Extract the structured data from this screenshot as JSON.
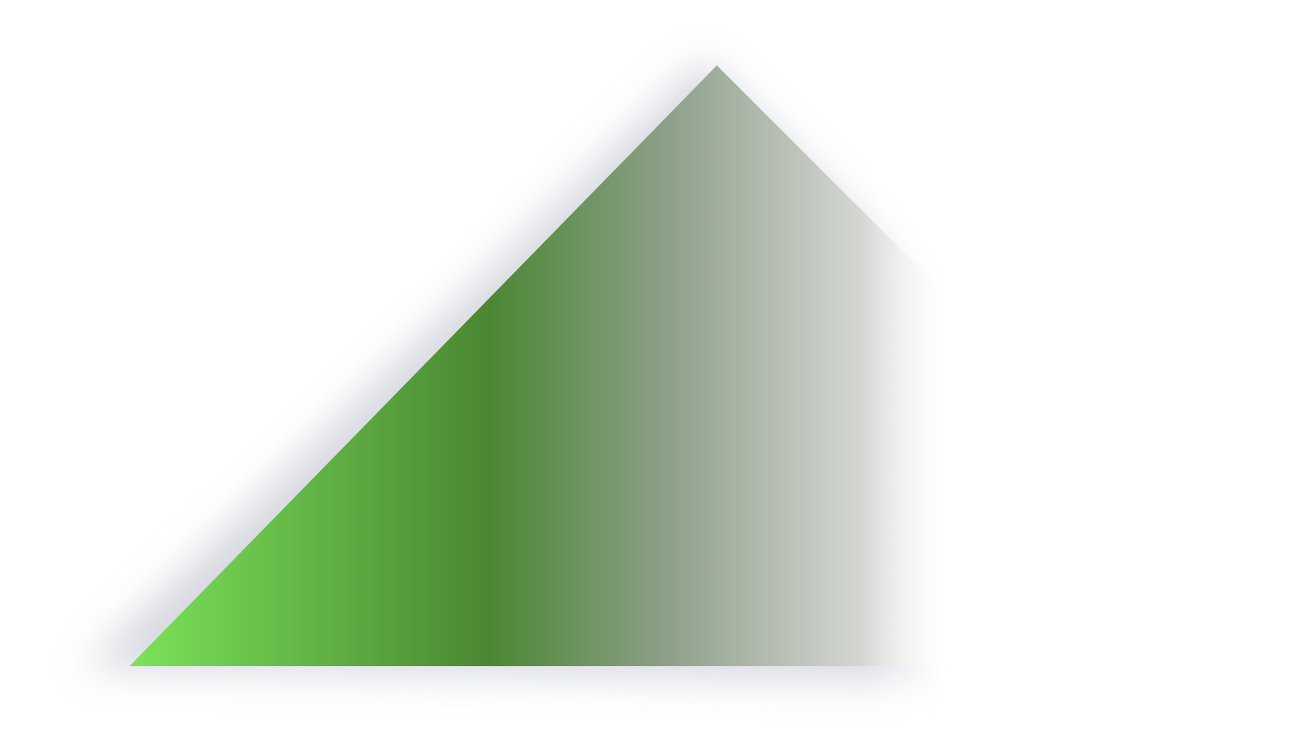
{
  "shape": {
    "type": "triangle",
    "colors": {
      "gradient_start": "#7be359",
      "gradient_mid": "#4a8732",
      "gradient_gray": "#8fa08a",
      "gradient_light": "#d6d7d4",
      "shadow": "#c9ccd6",
      "background": "#ffffff"
    }
  }
}
